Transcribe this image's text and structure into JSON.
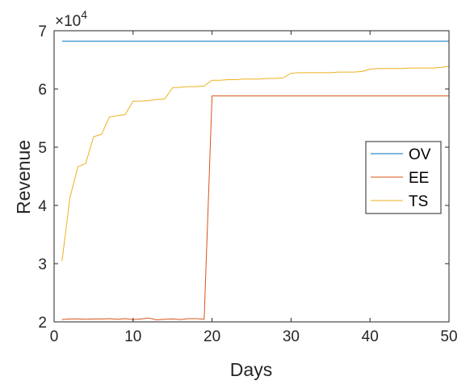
{
  "chart_data": {
    "type": "line",
    "xlabel": "Days",
    "ylabel": "Revenue",
    "xlim": [
      0,
      50
    ],
    "ylim": [
      20000,
      70000
    ],
    "xticks": [
      0,
      10,
      20,
      30,
      40,
      50
    ],
    "yticks": [
      20000,
      30000,
      40000,
      50000,
      60000,
      70000
    ],
    "yticklabels": [
      "2",
      "3",
      "4",
      "5",
      "6",
      "7"
    ],
    "y_exponent_base": "×10",
    "y_exponent_power": "4",
    "grid": false,
    "legend_position": "right",
    "series": [
      {
        "name": "OV",
        "color": "#0072BD",
        "x": [
          1,
          50
        ],
        "values": [
          68200,
          68200
        ]
      },
      {
        "name": "EE",
        "color": "#D95319",
        "x": [
          1,
          2,
          3,
          4,
          5,
          6,
          7,
          8,
          9,
          10,
          11,
          12,
          13,
          14,
          15,
          16,
          17,
          18,
          19,
          20,
          25,
          30,
          35,
          40,
          45,
          50
        ],
        "values": [
          20400,
          20500,
          20500,
          20450,
          20500,
          20500,
          20550,
          20450,
          20550,
          20400,
          20500,
          20650,
          20350,
          20450,
          20500,
          20400,
          20550,
          20550,
          20450,
          58800,
          58800,
          58800,
          58800,
          58800,
          58800,
          58800
        ]
      },
      {
        "name": "TS",
        "color": "#EDB120",
        "x": [
          1,
          2,
          3,
          4,
          5,
          6,
          7,
          8,
          9,
          10,
          11,
          12,
          13,
          14,
          15,
          16,
          17,
          18,
          19,
          20,
          21,
          22,
          23,
          24,
          25,
          26,
          27,
          28,
          29,
          30,
          31,
          32,
          33,
          34,
          35,
          36,
          37,
          38,
          39,
          40,
          41,
          42,
          43,
          44,
          45,
          46,
          47,
          48,
          49,
          50
        ],
        "values": [
          30400,
          41300,
          46600,
          47200,
          51800,
          52200,
          55200,
          55400,
          55600,
          57900,
          57900,
          58000,
          58200,
          58300,
          60200,
          60300,
          60400,
          60400,
          60500,
          61500,
          61500,
          61600,
          61600,
          61700,
          61700,
          61700,
          61800,
          61800,
          61900,
          62700,
          62800,
          62800,
          62800,
          62800,
          62800,
          62900,
          62900,
          62900,
          63000,
          63400,
          63500,
          63500,
          63500,
          63500,
          63600,
          63600,
          63600,
          63600,
          63700,
          63900
        ]
      }
    ]
  }
}
